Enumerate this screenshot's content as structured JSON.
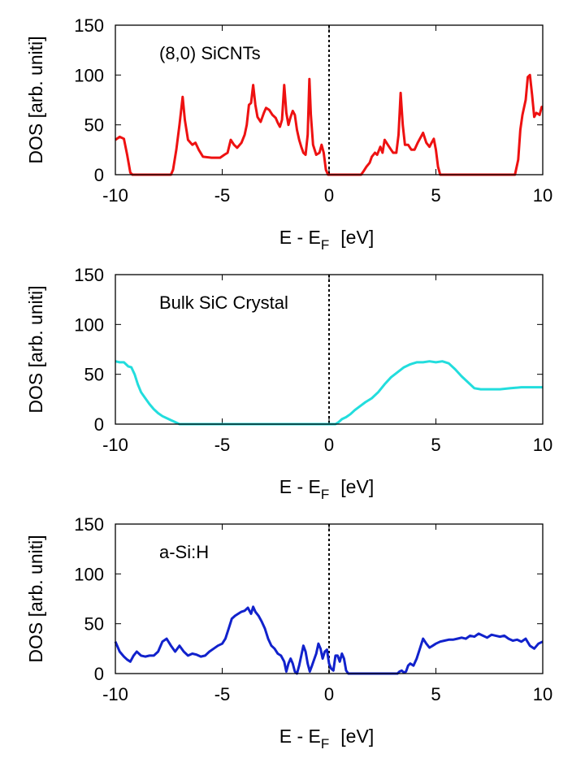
{
  "chart_data": [
    {
      "type": "line",
      "annotation": "(8,0) SiCNTs",
      "xlabel_main": "E - E",
      "xlabel_sub": "F",
      "xlabel_unit": "[eV]",
      "ylabel": "DOS [arb. uniti]",
      "xlim": [
        -10,
        10
      ],
      "ylim": [
        0,
        150
      ],
      "xticks": [
        "-10",
        "-5",
        "0",
        "5",
        "10"
      ],
      "yticks": [
        "0",
        "50",
        "100",
        "150"
      ],
      "grid": false,
      "fermi_line_x": 0,
      "series": [
        {
          "color": "#ee1111",
          "points": [
            [
              -10,
              35
            ],
            [
              -9.8,
              38
            ],
            [
              -9.6,
              36
            ],
            [
              -9.45,
              20
            ],
            [
              -9.3,
              2
            ],
            [
              -9.2,
              0
            ],
            [
              -7.4,
              0
            ],
            [
              -7.3,
              5
            ],
            [
              -7.15,
              25
            ],
            [
              -7.0,
              50
            ],
            [
              -6.85,
              78
            ],
            [
              -6.75,
              55
            ],
            [
              -6.6,
              35
            ],
            [
              -6.4,
              30
            ],
            [
              -6.25,
              32
            ],
            [
              -6.1,
              25
            ],
            [
              -5.9,
              18
            ],
            [
              -5.5,
              17
            ],
            [
              -5.1,
              17
            ],
            [
              -4.9,
              20
            ],
            [
              -4.75,
              22
            ],
            [
              -4.6,
              35
            ],
            [
              -4.45,
              30
            ],
            [
              -4.3,
              27
            ],
            [
              -4.1,
              32
            ],
            [
              -3.95,
              40
            ],
            [
              -3.85,
              50
            ],
            [
              -3.75,
              70
            ],
            [
              -3.65,
              72
            ],
            [
              -3.55,
              90
            ],
            [
              -3.45,
              70
            ],
            [
              -3.35,
              58
            ],
            [
              -3.2,
              53
            ],
            [
              -3.05,
              62
            ],
            [
              -2.95,
              67
            ],
            [
              -2.8,
              65
            ],
            [
              -2.65,
              60
            ],
            [
              -2.5,
              57
            ],
            [
              -2.4,
              52
            ],
            [
              -2.3,
              48
            ],
            [
              -2.2,
              55
            ],
            [
              -2.1,
              90
            ],
            [
              -2.0,
              62
            ],
            [
              -1.9,
              50
            ],
            [
              -1.8,
              58
            ],
            [
              -1.7,
              64
            ],
            [
              -1.6,
              60
            ],
            [
              -1.5,
              45
            ],
            [
              -1.4,
              35
            ],
            [
              -1.3,
              28
            ],
            [
              -1.2,
              22
            ],
            [
              -1.1,
              20
            ],
            [
              -1.0,
              40
            ],
            [
              -0.92,
              96
            ],
            [
              -0.85,
              60
            ],
            [
              -0.75,
              30
            ],
            [
              -0.6,
              20
            ],
            [
              -0.45,
              22
            ],
            [
              -0.35,
              30
            ],
            [
              -0.25,
              22
            ],
            [
              -0.15,
              5
            ],
            [
              -0.05,
              0
            ],
            [
              1.5,
              0
            ],
            [
              1.6,
              3
            ],
            [
              1.75,
              8
            ],
            [
              1.9,
              12
            ],
            [
              2.0,
              18
            ],
            [
              2.15,
              22
            ],
            [
              2.25,
              20
            ],
            [
              2.4,
              28
            ],
            [
              2.5,
              22
            ],
            [
              2.6,
              35
            ],
            [
              2.75,
              30
            ],
            [
              2.9,
              25
            ],
            [
              3.0,
              22
            ],
            [
              3.15,
              22
            ],
            [
              3.25,
              40
            ],
            [
              3.35,
              82
            ],
            [
              3.45,
              50
            ],
            [
              3.55,
              30
            ],
            [
              3.7,
              30
            ],
            [
              3.85,
              25
            ],
            [
              4.0,
              25
            ],
            [
              4.15,
              32
            ],
            [
              4.3,
              38
            ],
            [
              4.4,
              42
            ],
            [
              4.55,
              32
            ],
            [
              4.7,
              28
            ],
            [
              4.8,
              32
            ],
            [
              4.9,
              36
            ],
            [
              5.0,
              25
            ],
            [
              5.1,
              8
            ],
            [
              5.2,
              0
            ],
            [
              8.7,
              0
            ],
            [
              8.85,
              15
            ],
            [
              8.95,
              45
            ],
            [
              9.05,
              60
            ],
            [
              9.2,
              75
            ],
            [
              9.3,
              98
            ],
            [
              9.4,
              100
            ],
            [
              9.5,
              80
            ],
            [
              9.6,
              58
            ],
            [
              9.7,
              62
            ],
            [
              9.85,
              60
            ],
            [
              9.95,
              68
            ],
            [
              10,
              68
            ]
          ]
        }
      ]
    },
    {
      "type": "line",
      "annotation": "Bulk SiC Crystal",
      "xlabel_main": "E - E",
      "xlabel_sub": "F",
      "xlabel_unit": "[eV]",
      "ylabel": "DOS [arb. uniti]",
      "xlim": [
        -10,
        10
      ],
      "ylim": [
        0,
        150
      ],
      "xticks": [
        "-10",
        "-5",
        "0",
        "5",
        "10"
      ],
      "yticks": [
        "0",
        "50",
        "100",
        "150"
      ],
      "grid": false,
      "fermi_line_x": 0,
      "series": [
        {
          "color": "#22dddd",
          "points": [
            [
              -10,
              63
            ],
            [
              -9.8,
              62
            ],
            [
              -9.6,
              62
            ],
            [
              -9.4,
              58
            ],
            [
              -9.25,
              57
            ],
            [
              -9.1,
              50
            ],
            [
              -8.95,
              40
            ],
            [
              -8.8,
              32
            ],
            [
              -8.6,
              26
            ],
            [
              -8.4,
              20
            ],
            [
              -8.2,
              15
            ],
            [
              -8.0,
              11
            ],
            [
              -7.8,
              8
            ],
            [
              -7.6,
              6
            ],
            [
              -7.4,
              4
            ],
            [
              -7.2,
              2
            ],
            [
              -7.0,
              0
            ],
            [
              0.3,
              0
            ],
            [
              0.45,
              2
            ],
            [
              0.6,
              5
            ],
            [
              0.8,
              7
            ],
            [
              1.0,
              10
            ],
            [
              1.2,
              14
            ],
            [
              1.45,
              18
            ],
            [
              1.7,
              22
            ],
            [
              2.0,
              26
            ],
            [
              2.3,
              32
            ],
            [
              2.6,
              40
            ],
            [
              2.9,
              47
            ],
            [
              3.2,
              52
            ],
            [
              3.5,
              57
            ],
            [
              3.8,
              60
            ],
            [
              4.1,
              62
            ],
            [
              4.4,
              62
            ],
            [
              4.7,
              63
            ],
            [
              5.0,
              62
            ],
            [
              5.3,
              63
            ],
            [
              5.6,
              61
            ],
            [
              5.9,
              55
            ],
            [
              6.2,
              48
            ],
            [
              6.5,
              42
            ],
            [
              6.8,
              36
            ],
            [
              7.1,
              35
            ],
            [
              7.5,
              35
            ],
            [
              8.0,
              35
            ],
            [
              8.5,
              36
            ],
            [
              9.0,
              37
            ],
            [
              9.5,
              37
            ],
            [
              10,
              37
            ]
          ]
        }
      ]
    },
    {
      "type": "line",
      "annotation": "a-Si:H",
      "xlabel_main": "E - E",
      "xlabel_sub": "F",
      "xlabel_unit": "[eV]",
      "ylabel": "DOS [arb. uniti]",
      "xlim": [
        -10,
        10
      ],
      "ylim": [
        0,
        150
      ],
      "xticks": [
        "-10",
        "-5",
        "0",
        "5",
        "10"
      ],
      "yticks": [
        "0",
        "50",
        "100",
        "150"
      ],
      "grid": false,
      "fermi_line_x": 0,
      "series": [
        {
          "color": "#1122cc",
          "points": [
            [
              -10,
              32
            ],
            [
              -9.8,
              22
            ],
            [
              -9.6,
              17
            ],
            [
              -9.45,
              14
            ],
            [
              -9.3,
              12
            ],
            [
              -9.15,
              18
            ],
            [
              -9.0,
              22
            ],
            [
              -8.8,
              18
            ],
            [
              -8.6,
              17
            ],
            [
              -8.4,
              18
            ],
            [
              -8.2,
              18
            ],
            [
              -8.0,
              22
            ],
            [
              -7.8,
              32
            ],
            [
              -7.6,
              35
            ],
            [
              -7.4,
              28
            ],
            [
              -7.2,
              22
            ],
            [
              -7.0,
              28
            ],
            [
              -6.8,
              22
            ],
            [
              -6.6,
              18
            ],
            [
              -6.4,
              20
            ],
            [
              -6.2,
              19
            ],
            [
              -6.0,
              17
            ],
            [
              -5.8,
              18
            ],
            [
              -5.6,
              22
            ],
            [
              -5.4,
              25
            ],
            [
              -5.2,
              28
            ],
            [
              -5.0,
              30
            ],
            [
              -4.85,
              35
            ],
            [
              -4.7,
              45
            ],
            [
              -4.55,
              55
            ],
            [
              -4.4,
              58
            ],
            [
              -4.25,
              60
            ],
            [
              -4.1,
              62
            ],
            [
              -3.95,
              63
            ],
            [
              -3.8,
              66
            ],
            [
              -3.65,
              60
            ],
            [
              -3.55,
              67
            ],
            [
              -3.45,
              62
            ],
            [
              -3.3,
              58
            ],
            [
              -3.15,
              52
            ],
            [
              -3.0,
              45
            ],
            [
              -2.85,
              35
            ],
            [
              -2.7,
              28
            ],
            [
              -2.55,
              25
            ],
            [
              -2.4,
              20
            ],
            [
              -2.25,
              18
            ],
            [
              -2.1,
              12
            ],
            [
              -2.0,
              2
            ],
            [
              -1.9,
              10
            ],
            [
              -1.8,
              15
            ],
            [
              -1.7,
              10
            ],
            [
              -1.6,
              2
            ],
            [
              -1.5,
              0
            ],
            [
              -1.4,
              8
            ],
            [
              -1.3,
              18
            ],
            [
              -1.2,
              28
            ],
            [
              -1.1,
              22
            ],
            [
              -1.0,
              10
            ],
            [
              -0.9,
              2
            ],
            [
              -0.8,
              8
            ],
            [
              -0.7,
              14
            ],
            [
              -0.6,
              20
            ],
            [
              -0.5,
              30
            ],
            [
              -0.4,
              25
            ],
            [
              -0.3,
              15
            ],
            [
              -0.2,
              22
            ],
            [
              -0.1,
              24
            ],
            [
              0.0,
              10
            ],
            [
              0.1,
              5
            ],
            [
              0.2,
              3
            ],
            [
              0.3,
              18
            ],
            [
              0.4,
              18
            ],
            [
              0.5,
              12
            ],
            [
              0.6,
              20
            ],
            [
              0.7,
              15
            ],
            [
              0.8,
              3
            ],
            [
              0.9,
              0
            ],
            [
              3.2,
              0
            ],
            [
              3.3,
              2
            ],
            [
              3.4,
              3
            ],
            [
              3.5,
              1
            ],
            [
              3.6,
              2
            ],
            [
              3.7,
              8
            ],
            [
              3.8,
              10
            ],
            [
              3.95,
              8
            ],
            [
              4.1,
              15
            ],
            [
              4.25,
              25
            ],
            [
              4.4,
              35
            ],
            [
              4.55,
              30
            ],
            [
              4.7,
              26
            ],
            [
              4.85,
              28
            ],
            [
              5.0,
              30
            ],
            [
              5.2,
              32
            ],
            [
              5.4,
              33
            ],
            [
              5.6,
              34
            ],
            [
              5.8,
              34
            ],
            [
              6.0,
              35
            ],
            [
              6.2,
              36
            ],
            [
              6.4,
              35
            ],
            [
              6.6,
              38
            ],
            [
              6.8,
              37
            ],
            [
              7.0,
              40
            ],
            [
              7.2,
              38
            ],
            [
              7.4,
              36
            ],
            [
              7.6,
              39
            ],
            [
              7.8,
              38
            ],
            [
              8.0,
              37
            ],
            [
              8.2,
              38
            ],
            [
              8.4,
              35
            ],
            [
              8.6,
              33
            ],
            [
              8.8,
              34
            ],
            [
              9.0,
              32
            ],
            [
              9.2,
              35
            ],
            [
              9.4,
              28
            ],
            [
              9.6,
              25
            ],
            [
              9.8,
              30
            ],
            [
              10,
              32
            ]
          ]
        }
      ]
    }
  ]
}
